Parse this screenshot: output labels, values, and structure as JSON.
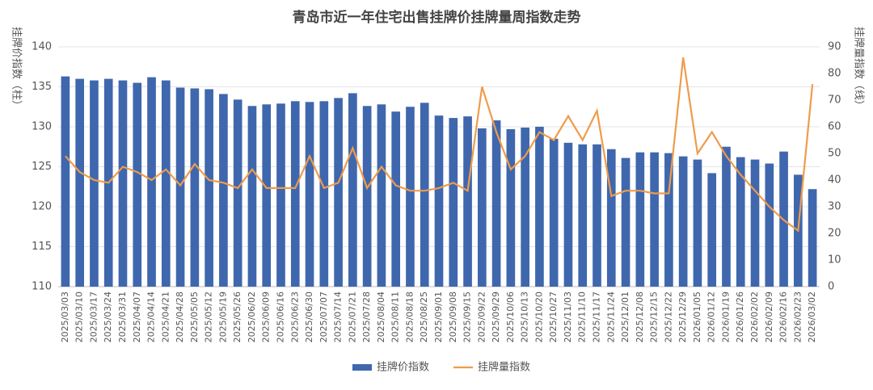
{
  "chart_data": {
    "type": "bar_line",
    "title": "青岛市近一年住宅出售挂牌价挂牌量周指数走势",
    "y_label": "挂牌价指数（柱）",
    "y2_label": "挂牌量指数（线）",
    "categories": [
      "2025/03/03",
      "2025/03/10",
      "2025/03/17",
      "2025/03/24",
      "2025/03/31",
      "2025/04/07",
      "2025/04/14",
      "2025/04/21",
      "2025/04/28",
      "2025/05/05",
      "2025/05/12",
      "2025/05/19",
      "2025/05/26",
      "2025/06/02",
      "2025/06/09",
      "2025/06/16",
      "2025/06/23",
      "2025/06/30",
      "2025/07/07",
      "2025/07/14",
      "2025/07/21",
      "2025/07/28",
      "2025/08/04",
      "2025/08/11",
      "2025/08/18",
      "2025/08/25",
      "2025/09/01",
      "2025/09/08",
      "2025/09/15",
      "2025/09/22",
      "2025/09/29",
      "2025/10/06",
      "2025/10/13",
      "2025/10/20",
      "2025/10/27",
      "2025/11/03",
      "2025/11/10",
      "2025/11/17",
      "2025/11/24",
      "2025/12/01",
      "2025/12/08",
      "2025/12/15",
      "2025/12/22",
      "2025/12/29",
      "2026/01/05",
      "2026/01/12",
      "2026/01/19",
      "2026/01/26",
      "2026/02/02",
      "2026/02/09",
      "2026/02/16",
      "2026/02/23",
      "2026/03/02"
    ],
    "series": [
      {
        "name": "挂牌价指数",
        "kind": "bar",
        "color": "#3f67ad",
        "values": [
          136.3,
          136.0,
          135.8,
          136.0,
          135.8,
          135.5,
          136.2,
          135.8,
          134.9,
          134.8,
          134.7,
          134.1,
          133.4,
          132.6,
          132.8,
          132.9,
          133.2,
          133.1,
          133.2,
          133.6,
          134.2,
          132.6,
          132.8,
          131.9,
          132.5,
          133.0,
          131.4,
          131.1,
          131.3,
          129.8,
          130.8,
          129.7,
          129.9,
          130.0,
          128.5,
          128.0,
          127.8,
          127.8,
          127.2,
          126.1,
          126.8,
          126.8,
          126.7,
          126.3,
          125.9,
          124.2,
          127.5,
          126.2,
          125.9,
          125.4,
          126.9,
          124.0,
          122.2
        ]
      },
      {
        "name": "挂牌量指数",
        "kind": "line",
        "axis": "y2",
        "color": "#ee9c4b",
        "values": [
          49,
          43,
          40,
          39,
          45,
          43,
          40,
          44,
          38,
          46,
          40,
          39,
          37,
          44,
          37,
          37,
          37,
          49,
          37,
          39,
          52,
          37,
          45,
          38,
          36,
          36,
          37,
          39,
          36,
          75,
          58,
          44,
          49,
          58,
          55,
          64,
          55,
          66,
          34,
          36,
          36,
          35,
          35,
          86,
          50,
          58,
          49,
          42,
          36,
          30,
          25,
          21,
          76
        ]
      }
    ],
    "ylim": [
      110,
      140
    ],
    "yticks": [
      110,
      115,
      120,
      125,
      130,
      135,
      140
    ],
    "y2lim": [
      0,
      90
    ],
    "y2ticks": [
      0,
      10,
      20,
      30,
      40,
      50,
      60,
      70,
      80,
      90
    ],
    "grid": true,
    "legend": "bottom"
  }
}
